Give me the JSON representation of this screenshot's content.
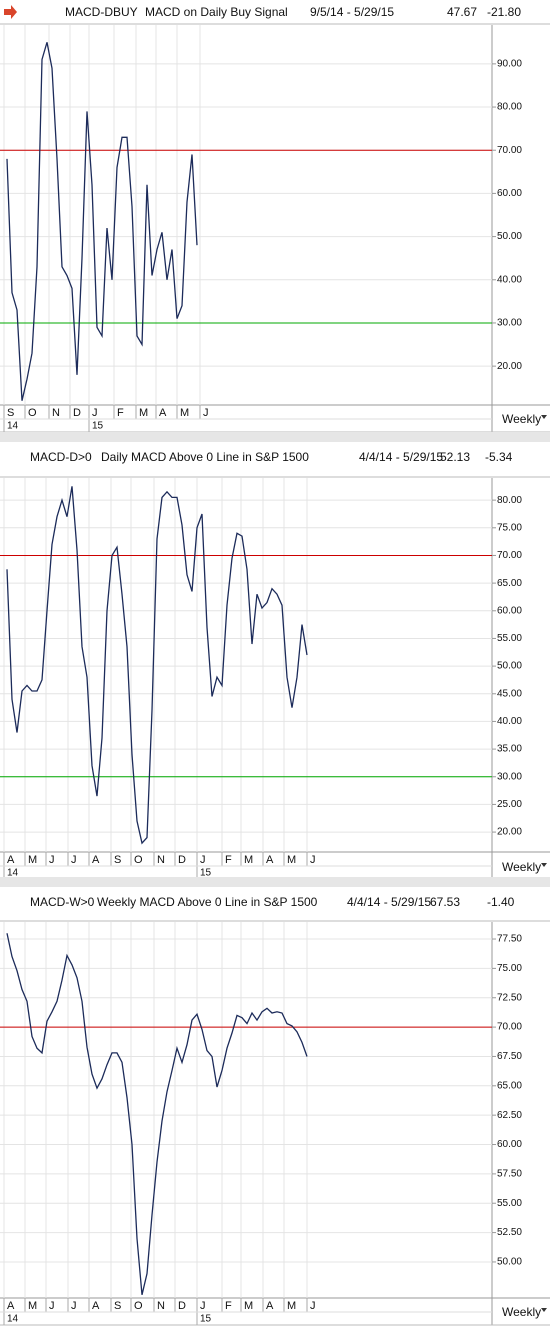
{
  "chart_data": [
    {
      "type": "line",
      "symbol": "MACD-DBUY",
      "title": "MACD on Daily Buy Signal",
      "date_range": "9/5/14 - 5/29/15",
      "last_value": "47.67",
      "change": "-21.80",
      "period": "Weekly",
      "ylim": [
        11,
        99
      ],
      "xlim": [
        -1.4,
        97
      ],
      "yticks": [
        {
          "value": 20,
          "label": "20.00"
        },
        {
          "value": 30,
          "label": "30.00"
        },
        {
          "value": 40,
          "label": "40.00"
        },
        {
          "value": 50,
          "label": "50.00"
        },
        {
          "value": 60,
          "label": "60.00"
        },
        {
          "value": 70,
          "label": "70.00"
        },
        {
          "value": 80,
          "label": "80.00"
        },
        {
          "value": 90,
          "label": "90.00"
        }
      ],
      "xticks": [
        {
          "value": -0.6,
          "label": "S"
        },
        {
          "value": 3.6,
          "label": "O"
        },
        {
          "value": 8.4,
          "label": "N"
        },
        {
          "value": 12.6,
          "label": "D"
        },
        {
          "value": 16.4,
          "label": "J"
        },
        {
          "value": 21.4,
          "label": "F"
        },
        {
          "value": 25.8,
          "label": "M"
        },
        {
          "value": 29.8,
          "label": "A"
        },
        {
          "value": 34,
          "label": "M"
        },
        {
          "value": 38.6,
          "label": "J"
        }
      ],
      "year_ticks": [
        {
          "value": -0.6,
          "label": "14"
        },
        {
          "value": 16.4,
          "label": "15"
        }
      ],
      "hlines": [
        {
          "value": 70,
          "color": "#cc0000"
        },
        {
          "value": 30,
          "color": "#00aa00"
        }
      ],
      "grid": true,
      "series": [
        {
          "color": "#1c2b5a",
          "values": [
            68,
            37,
            33,
            12,
            17,
            23,
            43,
            91,
            95,
            89,
            68,
            43,
            41,
            38,
            18,
            45,
            79,
            62,
            29,
            27,
            52,
            40,
            66,
            73,
            73,
            57,
            27,
            25,
            62,
            41,
            47,
            51,
            40,
            47,
            31,
            34,
            58,
            69,
            48
          ]
        }
      ]
    },
    {
      "type": "line",
      "symbol": "MACD-D>0",
      "title": "Daily MACD Above 0 Line in S&P 1500",
      "date_range": "4/4/14 - 5/29/15",
      "last_value": "52.13",
      "change": "-5.34",
      "period": "Weekly",
      "ylim": [
        16.4,
        84
      ],
      "xlim": [
        -1.4,
        97
      ],
      "yticks": [
        {
          "value": 20,
          "label": "20.00"
        },
        {
          "value": 25,
          "label": "25.00"
        },
        {
          "value": 30,
          "label": "30.00"
        },
        {
          "value": 35,
          "label": "35.00"
        },
        {
          "value": 40,
          "label": "40.00"
        },
        {
          "value": 45,
          "label": "45.00"
        },
        {
          "value": 50,
          "label": "50.00"
        },
        {
          "value": 55,
          "label": "55.00"
        },
        {
          "value": 60,
          "label": "60.00"
        },
        {
          "value": 65,
          "label": "65.00"
        },
        {
          "value": 70,
          "label": "70.00"
        },
        {
          "value": 75,
          "label": "75.00"
        },
        {
          "value": 80,
          "label": "80.00"
        }
      ],
      "xticks": [
        {
          "value": -0.6,
          "label": "A"
        },
        {
          "value": 3.6,
          "label": "M"
        },
        {
          "value": 7.8,
          "label": "J"
        },
        {
          "value": 12.2,
          "label": "J"
        },
        {
          "value": 16.4,
          "label": "A"
        },
        {
          "value": 20.8,
          "label": "S"
        },
        {
          "value": 24.8,
          "label": "O"
        },
        {
          "value": 29.4,
          "label": "N"
        },
        {
          "value": 33.6,
          "label": "D"
        },
        {
          "value": 38,
          "label": "J"
        },
        {
          "value": 43,
          "label": "F"
        },
        {
          "value": 46.8,
          "label": "M"
        },
        {
          "value": 51.2,
          "label": "A"
        },
        {
          "value": 55.4,
          "label": "M"
        },
        {
          "value": 60,
          "label": "J"
        }
      ],
      "year_ticks": [
        {
          "value": -0.6,
          "label": "14"
        },
        {
          "value": 38,
          "label": "15"
        }
      ],
      "hlines": [
        {
          "value": 70,
          "color": "#cc0000"
        },
        {
          "value": 30,
          "color": "#00aa00"
        }
      ],
      "grid": true,
      "series": [
        {
          "color": "#1c2b5a",
          "values": [
            67.5,
            44,
            38,
            45.5,
            46.5,
            45.5,
            45.5,
            47.5,
            60,
            72,
            77,
            80,
            77,
            82.5,
            71,
            53.5,
            48,
            32,
            26.5,
            37,
            60,
            70,
            71.5,
            63,
            53.5,
            34,
            22,
            18,
            19,
            42,
            73,
            80.5,
            81.5,
            80.5,
            80.5,
            75.5,
            66.5,
            63.5,
            75,
            77.5,
            57,
            44.5,
            48,
            46.5,
            61,
            69.5,
            74,
            73.5,
            67.5,
            54,
            63,
            60.5,
            61.5,
            64,
            63,
            61,
            48,
            42.5,
            48,
            57.5,
            52
          ]
        }
      ]
    },
    {
      "type": "line",
      "symbol": "MACD-W>0",
      "title": "Weekly MACD Above 0 Line in S&P 1500",
      "date_range": "4/4/14 - 5/29/15",
      "last_value": "67.53",
      "change": "-1.40",
      "period": "Weekly",
      "ylim": [
        46.93,
        78.95
      ],
      "xlim": [
        -1.4,
        97
      ],
      "yticks": [
        {
          "value": 50,
          "label": "50.00"
        },
        {
          "value": 52.5,
          "label": "52.50"
        },
        {
          "value": 55,
          "label": "55.00"
        },
        {
          "value": 57.5,
          "label": "57.50"
        },
        {
          "value": 60,
          "label": "60.00"
        },
        {
          "value": 62.5,
          "label": "62.50"
        },
        {
          "value": 65,
          "label": "65.00"
        },
        {
          "value": 67.5,
          "label": "67.50"
        },
        {
          "value": 70,
          "label": "70.00"
        },
        {
          "value": 72.5,
          "label": "72.50"
        },
        {
          "value": 75,
          "label": "75.00"
        },
        {
          "value": 77.5,
          "label": "77.50"
        }
      ],
      "xticks": [
        {
          "value": -0.6,
          "label": "A"
        },
        {
          "value": 3.6,
          "label": "M"
        },
        {
          "value": 7.8,
          "label": "J"
        },
        {
          "value": 12.2,
          "label": "J"
        },
        {
          "value": 16.4,
          "label": "A"
        },
        {
          "value": 20.8,
          "label": "S"
        },
        {
          "value": 24.8,
          "label": "O"
        },
        {
          "value": 29.4,
          "label": "N"
        },
        {
          "value": 33.6,
          "label": "D"
        },
        {
          "value": 38,
          "label": "J"
        },
        {
          "value": 43,
          "label": "F"
        },
        {
          "value": 46.8,
          "label": "M"
        },
        {
          "value": 51.2,
          "label": "A"
        },
        {
          "value": 55.4,
          "label": "M"
        },
        {
          "value": 60,
          "label": "J"
        }
      ],
      "year_ticks": [
        {
          "value": -0.6,
          "label": "14"
        },
        {
          "value": 38,
          "label": "15"
        }
      ],
      "hlines": [
        {
          "value": 70,
          "color": "#cc0000"
        }
      ],
      "grid": true,
      "series": [
        {
          "color": "#1c2b5a",
          "values": [
            78,
            76,
            74.8,
            73.2,
            72.2,
            69.2,
            68.2,
            67.8,
            70.5,
            71.3,
            72.2,
            74,
            76.1,
            75.3,
            74.2,
            72.2,
            68.3,
            66,
            64.8,
            65.6,
            66.8,
            67.8,
            67.8,
            67,
            64,
            60,
            52,
            47.2,
            49,
            54,
            58.5,
            62,
            64.5,
            66.3,
            68.2,
            67,
            68.5,
            70.6,
            71.1,
            69.8,
            68,
            67.5,
            64.9,
            66.3,
            68.2,
            69.5,
            71,
            70.8,
            70.3,
            71.2,
            70.6,
            71.3,
            71.6,
            71.2,
            71.3,
            71.2,
            70.3,
            70.1,
            69.6,
            68.7,
            67.5
          ]
        }
      ]
    }
  ]
}
